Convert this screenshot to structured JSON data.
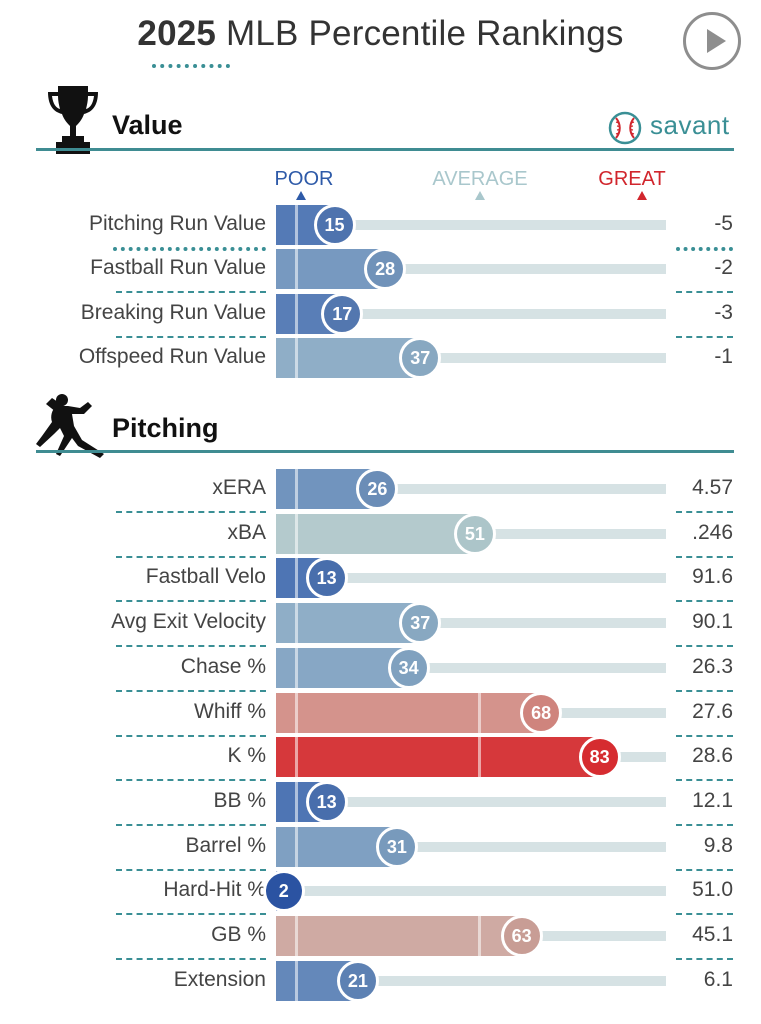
{
  "header": {
    "year": "2025",
    "title_rest": "MLB Percentile Rankings",
    "play_icon": "play-icon"
  },
  "sections": {
    "value": {
      "title": "Value",
      "icon": "trophy-icon",
      "brand": "savant",
      "brand_icon": "baseball-icon"
    },
    "pitching": {
      "title": "Pitching",
      "icon": "pitcher-silhouette-icon"
    }
  },
  "legend": {
    "poor": "POOR",
    "average": "AVERAGE",
    "great": "GREAT",
    "poor_color": "#2e5aa8",
    "average_color": "#a9c7cc",
    "great_color": "#d1262d"
  },
  "chart_data": {
    "type": "bar",
    "orientation": "horizontal",
    "title": "2025 MLB Percentile Rankings",
    "xlim": [
      0,
      100
    ],
    "value_metrics": [
      {
        "label": "Pitching Run Value",
        "percentile": 15,
        "value": "-5"
      },
      {
        "label": "Fastball Run Value",
        "percentile": 28,
        "value": "-2"
      },
      {
        "label": "Breaking Run Value",
        "percentile": 17,
        "value": "-3"
      },
      {
        "label": "Offspeed Run Value",
        "percentile": 37,
        "value": "-1"
      }
    ],
    "pitching_metrics": [
      {
        "label": "xERA",
        "percentile": 26,
        "value": "4.57"
      },
      {
        "label": "xBA",
        "percentile": 51,
        "value": ".246"
      },
      {
        "label": "Fastball Velo",
        "percentile": 13,
        "value": "91.6"
      },
      {
        "label": "Avg Exit Velocity",
        "percentile": 37,
        "value": "90.1"
      },
      {
        "label": "Chase %",
        "percentile": 34,
        "value": "26.3"
      },
      {
        "label": "Whiff %",
        "percentile": 68,
        "value": "27.6"
      },
      {
        "label": "K %",
        "percentile": 83,
        "value": "28.6"
      },
      {
        "label": "BB %",
        "percentile": 13,
        "value": "12.1"
      },
      {
        "label": "Barrel %",
        "percentile": 31,
        "value": "9.8"
      },
      {
        "label": "Hard-Hit %",
        "percentile": 2,
        "value": "51.0"
      },
      {
        "label": "GB %",
        "percentile": 63,
        "value": "45.1"
      },
      {
        "label": "Extension",
        "percentile": 21,
        "value": "6.1"
      }
    ]
  }
}
